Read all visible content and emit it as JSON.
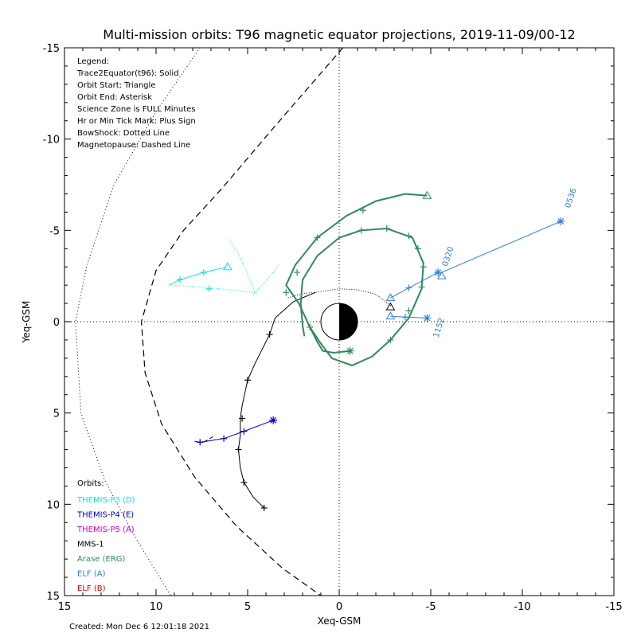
{
  "chart_data": {
    "type": "line",
    "title": "Multi-mission orbits: T96 magnetic equator projections, 2019-11-09/00-12",
    "xlabel": "Xeq-GSM",
    "ylabel": "Yeq-GSM",
    "xlim": [
      15,
      -15
    ],
    "ylim": [
      -15,
      15
    ],
    "xticks": [
      15,
      10,
      5,
      0,
      -5,
      -10,
      -15
    ],
    "yticks": [
      -15,
      -10,
      -5,
      0,
      5,
      10,
      15
    ],
    "grid": false,
    "legend_lines": [
      "Legend:",
      "Trace2Equator(t96): Solid",
      "Orbit Start: Triangle",
      "Orbit End: Asterisk",
      "Science Zone is FULL Minutes",
      "Hr or Min Tick Mark: Plus Sign",
      "BowShock: Dotted Line",
      "Magnetopause: Dashed Line"
    ],
    "orbits_heading": "Orbits:",
    "orbit_entries": [
      {
        "name": "THEMIS-P3 (D)",
        "color": "#00e5e5"
      },
      {
        "name": "THEMIS-P4 (E)",
        "color": "#0000c8"
      },
      {
        "name": "THEMIS-P5 (A)",
        "color": "#d400d4"
      },
      {
        "name": "MMS-1",
        "color": "#000000"
      },
      {
        "name": "Arase (ERG)",
        "color": "#2e8b57"
      },
      {
        "name": "ELF (A)",
        "color": "#2f7fd6"
      },
      {
        "name": "ELF (B)",
        "color": "#d40000"
      }
    ],
    "bow_shock": {
      "style": "dotted",
      "color": "#000000",
      "points": [
        [
          7.6,
          -15
        ],
        [
          10,
          -11.5
        ],
        [
          12.3,
          -7.5
        ],
        [
          13.8,
          -3
        ],
        [
          14.4,
          0
        ],
        [
          14.1,
          5
        ],
        [
          12.8,
          8.7
        ],
        [
          11.2,
          11.7
        ],
        [
          9.2,
          15
        ]
      ]
    },
    "magnetopause": {
      "style": "dashed",
      "color": "#000000",
      "points": [
        [
          -0.2,
          -15
        ],
        [
          3.6,
          -10.6
        ],
        [
          6.4,
          -7.3
        ],
        [
          8.5,
          -5
        ],
        [
          10,
          -2.8
        ],
        [
          10.8,
          0
        ],
        [
          10.6,
          2.8
        ],
        [
          9.7,
          5.6
        ],
        [
          7.9,
          8.5
        ],
        [
          5.6,
          11.2
        ],
        [
          3.1,
          13.5
        ],
        [
          1,
          15
        ]
      ]
    },
    "series": [
      {
        "name": "THEMIS-P3 (D)",
        "color": "#00e5e5",
        "points": [
          [
            6.1,
            -3
          ],
          [
            7.4,
            -2.7
          ],
          [
            8.7,
            -2.3
          ],
          [
            9.3,
            -2
          ]
        ],
        "ticks": [
          [
            7.4,
            -2.7
          ],
          [
            8.7,
            -2.3
          ]
        ],
        "start": [
          6.1,
          -3
        ],
        "end": null
      },
      {
        "name": "THEMIS-P3 (D) trace",
        "color": "#00e5e5",
        "style": "dotted",
        "points": [
          [
            9.2,
            -2
          ],
          [
            7.5,
            -1.9
          ],
          [
            5.5,
            -1.7
          ],
          [
            4.5,
            -1.55
          ]
        ],
        "ticks": [
          [
            7.1,
            -1.8
          ]
        ]
      },
      {
        "name": "THEMIS-P3 (D) trace 2",
        "color": "#00e5e5",
        "style": "dotted",
        "points": [
          [
            6,
            -4.5
          ],
          [
            5.5,
            -3.7
          ],
          [
            5,
            -2.6
          ],
          [
            4.6,
            -1.6
          ]
        ],
        "ticks": []
      },
      {
        "name": "THEMIS-P3 (D) trace 3",
        "color": "#00e5e5",
        "style": "dotted",
        "points": [
          [
            4.7,
            -1.5
          ],
          [
            4.2,
            -2
          ],
          [
            3.7,
            -2.6
          ],
          [
            3.3,
            -3.1
          ]
        ],
        "ticks": []
      },
      {
        "name": "THEMIS-P4 (E)",
        "color": "#0000c8",
        "points": [
          [
            3.6,
            5.4
          ],
          [
            5.2,
            6.0
          ],
          [
            6.3,
            6.4
          ],
          [
            7.6,
            6.6
          ],
          [
            7.9,
            6.55
          ]
        ],
        "ticks": [
          [
            5.2,
            6.0
          ],
          [
            6.3,
            6.4
          ],
          [
            7.6,
            6.6
          ]
        ],
        "start": null,
        "end": [
          3.6,
          5.4
        ]
      },
      {
        "name": "THEMIS-P4 (E) trace",
        "color": "#000000",
        "style": "dashed",
        "points": [
          [
            6.9,
            6.3
          ],
          [
            7.4,
            6.6
          ]
        ],
        "ticks": []
      },
      {
        "name": "MMS-1",
        "color": "#000000",
        "points": [
          [
            2.8,
            -1.3
          ],
          [
            2.0,
            -1.55
          ],
          [
            1.3,
            -1.6
          ],
          [
            0,
            -1.8
          ],
          [
            -1,
            -1.75
          ],
          [
            -2,
            -1.5
          ],
          [
            -2.8,
            -0.9
          ],
          [
            -2.8,
            -0.8
          ]
        ],
        "ticks": [],
        "start": [
          -2.8,
          -0.8
        ],
        "end": null,
        "dotted": true
      },
      {
        "name": "MMS-1 trace",
        "color": "#000000",
        "points": [
          [
            1.3,
            -1.6
          ],
          [
            2.5,
            -1.1
          ],
          [
            3.5,
            -0.2
          ],
          [
            3.8,
            0.7
          ],
          [
            4.6,
            2.3
          ],
          [
            5.0,
            3.2
          ],
          [
            5.3,
            4.6
          ],
          [
            5.4,
            5.3
          ],
          [
            5.4,
            6.2
          ],
          [
            5.5,
            7.0
          ],
          [
            5.4,
            8.0
          ],
          [
            5.2,
            8.8
          ],
          [
            4.7,
            9.6
          ],
          [
            4.1,
            10.2
          ]
        ],
        "ticks": [
          [
            3.8,
            0.7
          ],
          [
            5.0,
            3.2
          ],
          [
            5.3,
            5.3
          ],
          [
            5.5,
            7.0
          ],
          [
            5.2,
            8.8
          ],
          [
            4.1,
            10.2
          ]
        ],
        "start": null,
        "end": null
      },
      {
        "name": "Arase (ERG)",
        "color": "#2e8b57",
        "points": [
          [
            -4.8,
            -6.9
          ],
          [
            -3.6,
            -7.0
          ],
          [
            -2.0,
            -6.6
          ],
          [
            -0.4,
            -5.8
          ],
          [
            1.2,
            -4.6
          ],
          [
            2.4,
            -3.1
          ],
          [
            2.9,
            -2.0
          ],
          [
            2.2,
            -1.0
          ],
          [
            1.6,
            0.3
          ],
          [
            1.2,
            1.1
          ],
          [
            0.9,
            1.6
          ],
          [
            0.3,
            1.7
          ],
          [
            -0.6,
            1.6
          ]
        ],
        "ticks": [
          [
            -1.3,
            -6.1
          ],
          [
            1.2,
            -4.6
          ],
          [
            2.3,
            -2.7
          ],
          [
            2.9,
            -1.6
          ],
          [
            1.6,
            0.3
          ]
        ],
        "start": [
          -4.8,
          -6.9
        ],
        "end": [
          -0.6,
          1.6
        ]
      },
      {
        "name": "Arase (ERG) loop",
        "color": "#2e8b57",
        "points": [
          [
            1.6,
            0.3
          ],
          [
            1.0,
            1.2
          ],
          [
            0.4,
            2.0
          ],
          [
            -0.7,
            2.4
          ],
          [
            -1.8,
            1.9
          ],
          [
            -2.8,
            1.0
          ],
          [
            -3.8,
            -0.2
          ],
          [
            -4.5,
            -1.8
          ],
          [
            -4.6,
            -3.2
          ],
          [
            -4.0,
            -4.6
          ],
          [
            -2.6,
            -5.1
          ],
          [
            -1.2,
            -5.0
          ],
          [
            0,
            -4.6
          ],
          [
            1.2,
            -3.6
          ],
          [
            2.0,
            -2.3
          ],
          [
            2.1,
            -1.0
          ],
          [
            2.0,
            0.2
          ],
          [
            1.9,
            0.8
          ]
        ],
        "ticks": [
          [
            -2.8,
            1.0
          ],
          [
            -3.8,
            -0.6
          ],
          [
            -4.5,
            -1.9
          ],
          [
            -4.6,
            -3.0
          ],
          [
            -4.3,
            -4.0
          ],
          [
            -3.8,
            -4.7
          ],
          [
            -2.6,
            -5.1
          ],
          [
            -1.2,
            -5.0
          ]
        ],
        "start": null,
        "end": null
      },
      {
        "name": "ELF (A)",
        "color": "#2f7fd6",
        "points": [
          [
            -12.1,
            -5.5
          ],
          [
            -5.6,
            -2.7
          ]
        ],
        "ticks": [],
        "start": [
          -5.6,
          -2.5
        ],
        "end": [
          -12.1,
          -5.5
        ]
      },
      {
        "name": "ELF (A) 2",
        "color": "#2f7fd6",
        "points": [
          [
            -2.8,
            -1.3
          ],
          [
            -3.8,
            -1.85
          ],
          [
            -5.4,
            -2.7
          ]
        ],
        "ticks": [
          [
            -3.8,
            -1.85
          ]
        ],
        "start": [
          -2.8,
          -1.3
        ],
        "end": [
          -5.4,
          -2.7
        ]
      },
      {
        "name": "ELF (A) 3",
        "color": "#2f7fd6",
        "points": [
          [
            -2.8,
            -0.3
          ],
          [
            -3.6,
            -0.25
          ],
          [
            -4.8,
            -0.2
          ]
        ],
        "ticks": [
          [
            -3.6,
            -0.25
          ]
        ],
        "start": [
          -2.8,
          -0.3
        ],
        "end": [
          -4.8,
          -0.2
        ]
      }
    ],
    "time_labels": [
      {
        "text": "0536",
        "x": -12.6,
        "y": -6.2,
        "rotate": -72
      },
      {
        "text": "0320",
        "x": -5.9,
        "y": -3.0,
        "rotate": -72
      },
      {
        "text": "1152",
        "x": -5.4,
        "y": 0.9,
        "rotate": -72
      }
    ],
    "earth": {
      "center": [
        0,
        0
      ],
      "radius": 1
    }
  },
  "footer": {
    "created": "Created: Mon Dec  6 12:01:18 2021"
  }
}
